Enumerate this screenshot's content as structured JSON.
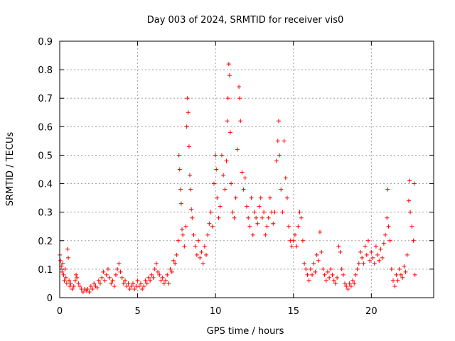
{
  "chart_data": {
    "type": "scatter",
    "title": "Day 003 of 2024, SRMTID for receiver vis0",
    "xlabel": "GPS time / hours",
    "ylabel": "SRMTID / TECUs",
    "xlim": [
      0,
      24
    ],
    "ylim": [
      0,
      0.9
    ],
    "xticks": [
      "0",
      "5",
      "10",
      "15",
      "20"
    ],
    "yticks": [
      "0",
      "0.1",
      "0.2",
      "0.3",
      "0.4",
      "0.5",
      "0.6",
      "0.7",
      "0.8",
      "0.9"
    ],
    "grid": true,
    "marker": "plus",
    "color": "#ff0000",
    "series": [
      {
        "name": "SRMTID",
        "points": [
          [
            0.0,
            0.15
          ],
          [
            0.05,
            0.13
          ],
          [
            0.1,
            0.11
          ],
          [
            0.15,
            0.09
          ],
          [
            0.2,
            0.12
          ],
          [
            0.25,
            0.08
          ],
          [
            0.3,
            0.06
          ],
          [
            0.35,
            0.1
          ],
          [
            0.4,
            0.07
          ],
          [
            0.45,
            0.05
          ],
          [
            0.5,
            0.17
          ],
          [
            0.55,
            0.14
          ],
          [
            0.6,
            0.06
          ],
          [
            0.65,
            0.04
          ],
          [
            0.7,
            0.05
          ],
          [
            0.8,
            0.03
          ],
          [
            0.9,
            0.04
          ],
          [
            1.0,
            0.06
          ],
          [
            1.05,
            0.08
          ],
          [
            1.1,
            0.07
          ],
          [
            1.2,
            0.05
          ],
          [
            1.3,
            0.04
          ],
          [
            1.4,
            0.03
          ],
          [
            1.5,
            0.02
          ],
          [
            1.6,
            0.03
          ],
          [
            1.7,
            0.025
          ],
          [
            1.8,
            0.03
          ],
          [
            1.9,
            0.02
          ],
          [
            2.0,
            0.04
          ],
          [
            2.1,
            0.03
          ],
          [
            2.2,
            0.05
          ],
          [
            2.3,
            0.04
          ],
          [
            2.4,
            0.035
          ],
          [
            2.5,
            0.06
          ],
          [
            2.6,
            0.05
          ],
          [
            2.7,
            0.07
          ],
          [
            2.8,
            0.09
          ],
          [
            2.9,
            0.06
          ],
          [
            3.0,
            0.08
          ],
          [
            3.1,
            0.1
          ],
          [
            3.2,
            0.07
          ],
          [
            3.3,
            0.05
          ],
          [
            3.4,
            0.06
          ],
          [
            3.5,
            0.04
          ],
          [
            3.6,
            0.08
          ],
          [
            3.7,
            0.1
          ],
          [
            3.8,
            0.12
          ],
          [
            3.9,
            0.09
          ],
          [
            4.0,
            0.07
          ],
          [
            4.1,
            0.05
          ],
          [
            4.2,
            0.06
          ],
          [
            4.3,
            0.04
          ],
          [
            4.4,
            0.05
          ],
          [
            4.5,
            0.03
          ],
          [
            4.6,
            0.04
          ],
          [
            4.7,
            0.05
          ],
          [
            4.8,
            0.03
          ],
          [
            4.9,
            0.04
          ],
          [
            5.0,
            0.06
          ],
          [
            5.1,
            0.04
          ],
          [
            5.2,
            0.05
          ],
          [
            5.3,
            0.03
          ],
          [
            5.4,
            0.04
          ],
          [
            5.5,
            0.06
          ],
          [
            5.6,
            0.05
          ],
          [
            5.7,
            0.07
          ],
          [
            5.8,
            0.06
          ],
          [
            5.9,
            0.08
          ],
          [
            6.0,
            0.07
          ],
          [
            6.1,
            0.1
          ],
          [
            6.2,
            0.12
          ],
          [
            6.3,
            0.09
          ],
          [
            6.4,
            0.08
          ],
          [
            6.5,
            0.06
          ],
          [
            6.6,
            0.07
          ],
          [
            6.7,
            0.05
          ],
          [
            6.8,
            0.06
          ],
          [
            6.9,
            0.08
          ],
          [
            7.0,
            0.05
          ],
          [
            7.1,
            0.1
          ],
          [
            7.2,
            0.09
          ],
          [
            7.3,
            0.13
          ],
          [
            7.4,
            0.12
          ],
          [
            7.5,
            0.15
          ],
          [
            7.6,
            0.2
          ],
          [
            7.65,
            0.5
          ],
          [
            7.7,
            0.45
          ],
          [
            7.75,
            0.38
          ],
          [
            7.8,
            0.33
          ],
          [
            7.85,
            0.24
          ],
          [
            7.9,
            0.22
          ],
          [
            8.0,
            0.18
          ],
          [
            8.1,
            0.25
          ],
          [
            8.15,
            0.6
          ],
          [
            8.2,
            0.7
          ],
          [
            8.25,
            0.65
          ],
          [
            8.3,
            0.53
          ],
          [
            8.35,
            0.43
          ],
          [
            8.4,
            0.38
          ],
          [
            8.45,
            0.31
          ],
          [
            8.5,
            0.28
          ],
          [
            8.6,
            0.22
          ],
          [
            8.7,
            0.18
          ],
          [
            8.8,
            0.15
          ],
          [
            8.9,
            0.2
          ],
          [
            9.0,
            0.14
          ],
          [
            9.1,
            0.16
          ],
          [
            9.2,
            0.12
          ],
          [
            9.3,
            0.18
          ],
          [
            9.4,
            0.15
          ],
          [
            9.5,
            0.22
          ],
          [
            9.6,
            0.26
          ],
          [
            9.7,
            0.3
          ],
          [
            9.8,
            0.25
          ],
          [
            9.9,
            0.4
          ],
          [
            10.0,
            0.5
          ],
          [
            10.05,
            0.45
          ],
          [
            10.1,
            0.35
          ],
          [
            10.2,
            0.28
          ],
          [
            10.3,
            0.32
          ],
          [
            10.4,
            0.5
          ],
          [
            10.5,
            0.43
          ],
          [
            10.6,
            0.38
          ],
          [
            10.7,
            0.48
          ],
          [
            10.75,
            0.62
          ],
          [
            10.8,
            0.7
          ],
          [
            10.85,
            0.82
          ],
          [
            10.9,
            0.78
          ],
          [
            10.95,
            0.58
          ],
          [
            11.0,
            0.4
          ],
          [
            11.1,
            0.3
          ],
          [
            11.2,
            0.28
          ],
          [
            11.3,
            0.35
          ],
          [
            11.4,
            0.52
          ],
          [
            11.5,
            0.74
          ],
          [
            11.55,
            0.7
          ],
          [
            11.6,
            0.62
          ],
          [
            11.7,
            0.44
          ],
          [
            11.8,
            0.38
          ],
          [
            11.9,
            0.42
          ],
          [
            12.0,
            0.32
          ],
          [
            12.1,
            0.28
          ],
          [
            12.2,
            0.25
          ],
          [
            12.3,
            0.35
          ],
          [
            12.4,
            0.22
          ],
          [
            12.5,
            0.3
          ],
          [
            12.6,
            0.28
          ],
          [
            12.7,
            0.26
          ],
          [
            12.8,
            0.32
          ],
          [
            12.9,
            0.35
          ],
          [
            13.0,
            0.28
          ],
          [
            13.1,
            0.3
          ],
          [
            13.2,
            0.22
          ],
          [
            13.3,
            0.25
          ],
          [
            13.4,
            0.28
          ],
          [
            13.5,
            0.35
          ],
          [
            13.6,
            0.3
          ],
          [
            13.7,
            0.26
          ],
          [
            13.8,
            0.3
          ],
          [
            13.9,
            0.48
          ],
          [
            14.0,
            0.55
          ],
          [
            14.05,
            0.62
          ],
          [
            14.1,
            0.5
          ],
          [
            14.2,
            0.38
          ],
          [
            14.3,
            0.3
          ],
          [
            14.4,
            0.55
          ],
          [
            14.5,
            0.42
          ],
          [
            14.6,
            0.35
          ],
          [
            14.7,
            0.25
          ],
          [
            14.8,
            0.2
          ],
          [
            14.9,
            0.18
          ],
          [
            15.0,
            0.2
          ],
          [
            15.1,
            0.22
          ],
          [
            15.2,
            0.18
          ],
          [
            15.3,
            0.25
          ],
          [
            15.4,
            0.3
          ],
          [
            15.5,
            0.28
          ],
          [
            15.6,
            0.2
          ],
          [
            15.7,
            0.12
          ],
          [
            15.8,
            0.1
          ],
          [
            15.9,
            0.08
          ],
          [
            16.0,
            0.06
          ],
          [
            16.1,
            0.1
          ],
          [
            16.2,
            0.08
          ],
          [
            16.3,
            0.12
          ],
          [
            16.4,
            0.09
          ],
          [
            16.5,
            0.15
          ],
          [
            16.6,
            0.13
          ],
          [
            16.7,
            0.23
          ],
          [
            16.8,
            0.16
          ],
          [
            16.9,
            0.1
          ],
          [
            17.0,
            0.08
          ],
          [
            17.1,
            0.06
          ],
          [
            17.2,
            0.09
          ],
          [
            17.3,
            0.07
          ],
          [
            17.4,
            0.1
          ],
          [
            17.5,
            0.08
          ],
          [
            17.6,
            0.06
          ],
          [
            17.7,
            0.05
          ],
          [
            17.8,
            0.07
          ],
          [
            17.9,
            0.18
          ],
          [
            18.0,
            0.16
          ],
          [
            18.1,
            0.1
          ],
          [
            18.2,
            0.08
          ],
          [
            18.3,
            0.05
          ],
          [
            18.4,
            0.04
          ],
          [
            18.5,
            0.03
          ],
          [
            18.6,
            0.05
          ],
          [
            18.7,
            0.04
          ],
          [
            18.8,
            0.06
          ],
          [
            18.9,
            0.05
          ],
          [
            19.0,
            0.08
          ],
          [
            19.1,
            0.1
          ],
          [
            19.2,
            0.12
          ],
          [
            19.3,
            0.16
          ],
          [
            19.4,
            0.14
          ],
          [
            19.5,
            0.12
          ],
          [
            19.6,
            0.18
          ],
          [
            19.7,
            0.15
          ],
          [
            19.8,
            0.2
          ],
          [
            19.9,
            0.13
          ],
          [
            20.0,
            0.16
          ],
          [
            20.1,
            0.14
          ],
          [
            20.2,
            0.12
          ],
          [
            20.3,
            0.18
          ],
          [
            20.4,
            0.15
          ],
          [
            20.5,
            0.13
          ],
          [
            20.6,
            0.17
          ],
          [
            20.7,
            0.14
          ],
          [
            20.8,
            0.19
          ],
          [
            20.9,
            0.22
          ],
          [
            21.0,
            0.28
          ],
          [
            21.05,
            0.38
          ],
          [
            21.1,
            0.25
          ],
          [
            21.2,
            0.2
          ],
          [
            21.3,
            0.1
          ],
          [
            21.4,
            0.06
          ],
          [
            21.5,
            0.04
          ],
          [
            21.6,
            0.08
          ],
          [
            21.7,
            0.06
          ],
          [
            21.8,
            0.1
          ],
          [
            21.9,
            0.08
          ],
          [
            22.0,
            0.07
          ],
          [
            22.1,
            0.11
          ],
          [
            22.2,
            0.09
          ],
          [
            22.3,
            0.15
          ],
          [
            22.4,
            0.34
          ],
          [
            22.45,
            0.41
          ],
          [
            22.5,
            0.3
          ],
          [
            22.6,
            0.25
          ],
          [
            22.7,
            0.2
          ],
          [
            22.75,
            0.4
          ],
          [
            22.8,
            0.08
          ]
        ]
      }
    ]
  }
}
